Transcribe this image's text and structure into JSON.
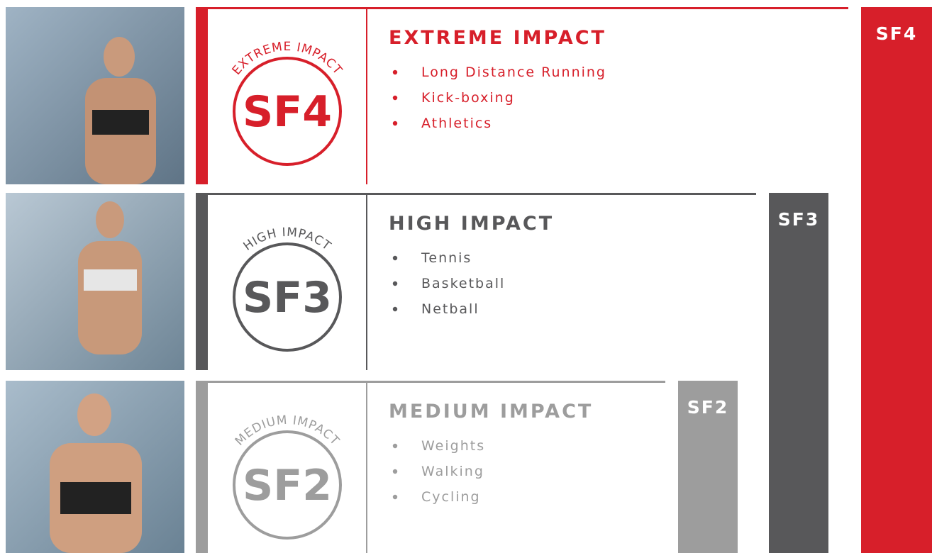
{
  "rows": [
    {
      "badge_arc": "EXTREME IMPACT",
      "badge": "SF4",
      "title": "EXTREME IMPACT",
      "items": [
        "Long Distance Running",
        "Kick-boxing",
        "Athletics"
      ],
      "tab": "SF4",
      "color": "#d71f2a"
    },
    {
      "badge_arc": "HIGH IMPACT",
      "badge": "SF3",
      "title": "HIGH IMPACT",
      "items": [
        "Tennis",
        "Basketball",
        "Netball"
      ],
      "tab": "SF3",
      "color": "#58585a"
    },
    {
      "badge_arc": "MEDIUM IMPACT",
      "badge": "SF2",
      "title": "MEDIUM IMPACT",
      "items": [
        "Weights",
        "Walking",
        "Cycling"
      ],
      "tab": "SF2",
      "color": "#9d9d9d"
    }
  ]
}
